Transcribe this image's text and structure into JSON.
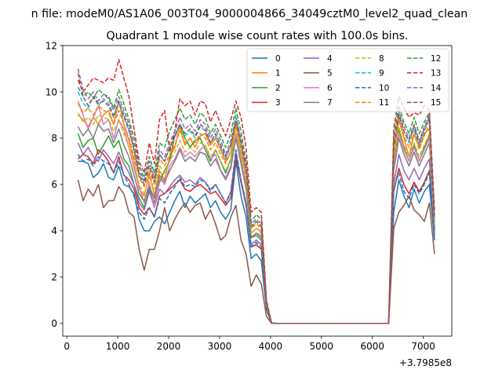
{
  "chart_data": {
    "type": "line",
    "suptitle": "n file: modeM0/AS1A06_003T04_9000004866_34049cztM0_level2_quad_clean",
    "title": "Quadrant 1 module wise count rates with 100.0s bins.",
    "xlabel": "",
    "ylabel": "",
    "x_offset_label": "+3.7985e8",
    "xlim": [
      -80,
      7560
    ],
    "ylim": [
      -0.55,
      12
    ],
    "xticks": [
      0,
      1000,
      2000,
      3000,
      4000,
      5000,
      6000,
      7000
    ],
    "yticks": [
      0,
      2,
      4,
      6,
      8,
      10,
      12
    ],
    "grid": false,
    "legend": {
      "position": "top-right",
      "columns": 4
    },
    "x": [
      220,
      320,
      420,
      520,
      620,
      720,
      820,
      920,
      1020,
      1120,
      1220,
      1320,
      1420,
      1520,
      1620,
      1720,
      1820,
      1920,
      2020,
      2120,
      2220,
      2320,
      2420,
      2520,
      2620,
      2720,
      2820,
      2920,
      3020,
      3120,
      3220,
      3320,
      3420,
      3520,
      3620,
      3720,
      3820,
      3920,
      4020,
      4120,
      4220,
      4320,
      4420,
      4520,
      4620,
      4720,
      4820,
      4920,
      5020,
      5120,
      5220,
      5320,
      5420,
      5520,
      5620,
      5720,
      5820,
      5920,
      6020,
      6120,
      6220,
      6320,
      6420,
      6520,
      6620,
      6720,
      6820,
      6920,
      7020,
      7120,
      7220
    ],
    "series": [
      {
        "name": "0",
        "color": "#1f77b4",
        "dashed": false,
        "values": [
          7.0,
          7.0,
          6.9,
          6.3,
          6.5,
          6.9,
          6.3,
          6.2,
          6.8,
          6.0,
          5.9,
          5.6,
          4.5,
          4.0,
          4.0,
          4.4,
          4.6,
          4.3,
          4.8,
          5.3,
          5.7,
          5.0,
          5.5,
          5.2,
          5.4,
          5.6,
          5.0,
          5.3,
          4.8,
          4.5,
          4.9,
          7.0,
          5.5,
          4.6,
          2.8,
          3.0,
          2.7,
          0.6,
          0.02,
          0,
          0,
          0,
          0,
          0,
          0,
          0,
          0,
          0,
          0,
          0,
          0,
          0,
          0,
          0,
          0,
          0,
          0,
          0,
          0,
          0,
          0,
          0,
          4.8,
          6.2,
          5.5,
          5.0,
          5.8,
          5.2,
          5.7,
          6.0,
          3.6
        ]
      },
      {
        "name": "1",
        "color": "#ff7f0e",
        "dashed": false,
        "values": [
          9.0,
          8.8,
          8.5,
          8.9,
          8.6,
          9.0,
          9.2,
          8.6,
          9.6,
          8.6,
          7.9,
          7.0,
          5.8,
          5.5,
          6.5,
          5.5,
          6.6,
          6.2,
          7.2,
          7.6,
          8.5,
          7.7,
          8.0,
          7.6,
          8.1,
          8.2,
          7.7,
          8.0,
          7.5,
          7.0,
          7.4,
          8.6,
          7.4,
          6.4,
          3.9,
          4.1,
          4.0,
          0.8,
          0.02,
          0,
          0,
          0,
          0,
          0,
          0,
          0,
          0,
          0,
          0,
          0,
          0,
          0,
          0,
          0,
          0,
          0,
          0,
          0,
          0,
          0,
          0,
          0,
          7.0,
          8.8,
          8.0,
          7.2,
          8.2,
          7.6,
          8.2,
          8.4,
          4.3
        ]
      },
      {
        "name": "2",
        "color": "#2ca02c",
        "dashed": false,
        "values": [
          8.2,
          7.6,
          7.9,
          8.0,
          7.3,
          7.7,
          8.1,
          7.6,
          7.9,
          7.1,
          6.8,
          6.0,
          5.4,
          5.0,
          5.8,
          5.2,
          6.1,
          6.6,
          7.0,
          8.1,
          8.6,
          8.0,
          7.6,
          7.9,
          8.0,
          7.5,
          7.0,
          7.5,
          7.0,
          6.5,
          7.1,
          8.2,
          7.0,
          6.0,
          3.7,
          3.8,
          3.6,
          0.7,
          0.02,
          0,
          0,
          0,
          0,
          0,
          0,
          0,
          0,
          0,
          0,
          0,
          0,
          0,
          0,
          0,
          0,
          0,
          0,
          0,
          0,
          0,
          0,
          0,
          6.8,
          8.4,
          7.6,
          7.0,
          7.7,
          7.0,
          7.6,
          8.1,
          4.0
        ]
      },
      {
        "name": "3",
        "color": "#d62728",
        "dashed": false,
        "values": [
          7.1,
          7.3,
          7.2,
          6.9,
          7.5,
          7.3,
          7.0,
          6.5,
          7.2,
          6.4,
          6.2,
          5.8,
          5.0,
          4.7,
          5.0,
          4.6,
          5.5,
          5.6,
          5.8,
          6.0,
          6.2,
          5.8,
          5.7,
          5.9,
          6.0,
          5.8,
          5.6,
          5.7,
          5.4,
          5.1,
          5.4,
          7.2,
          6.1,
          5.1,
          3.3,
          3.4,
          3.2,
          0.6,
          0.02,
          0,
          0,
          0,
          0,
          0,
          0,
          0,
          0,
          0,
          0,
          0,
          0,
          0,
          0,
          0,
          0,
          0,
          0,
          0,
          0,
          0,
          0,
          0,
          5.7,
          6.7,
          6.0,
          5.6,
          6.1,
          5.7,
          6.1,
          6.6,
          3.8
        ]
      },
      {
        "name": "4",
        "color": "#9467bd",
        "dashed": false,
        "values": [
          7.8,
          7.3,
          7.6,
          7.2,
          7.0,
          7.5,
          7.2,
          6.9,
          7.4,
          6.9,
          6.5,
          6.0,
          5.2,
          4.9,
          5.7,
          5.0,
          5.8,
          5.6,
          5.9,
          6.2,
          6.4,
          6.1,
          6.2,
          6.0,
          6.3,
          6.1,
          5.8,
          6.0,
          5.6,
          5.2,
          5.7,
          7.4,
          6.2,
          5.2,
          3.4,
          3.6,
          3.4,
          0.6,
          0.02,
          0,
          0,
          0,
          0,
          0,
          0,
          0,
          0,
          0,
          0,
          0,
          0,
          0,
          0,
          0,
          0,
          0,
          0,
          0,
          0,
          0,
          0,
          0,
          6.0,
          7.3,
          6.6,
          6.2,
          6.7,
          6.2,
          6.7,
          7.1,
          3.7
        ]
      },
      {
        "name": "5",
        "color": "#8c564b",
        "dashed": false,
        "values": [
          6.2,
          5.3,
          5.8,
          5.5,
          6.0,
          5.0,
          5.3,
          5.3,
          5.9,
          5.6,
          4.8,
          4.6,
          3.2,
          2.3,
          3.2,
          3.2,
          4.0,
          5.0,
          4.0,
          4.5,
          4.9,
          5.2,
          4.8,
          5.1,
          5.2,
          4.5,
          4.9,
          4.3,
          3.6,
          3.8,
          4.6,
          5.1,
          3.6,
          3.0,
          1.6,
          2.1,
          1.7,
          0.3,
          0.01,
          0,
          0,
          0,
          0,
          0,
          0,
          0,
          0,
          0,
          0,
          0,
          0,
          0,
          0,
          0,
          0,
          0,
          0,
          0,
          0,
          0,
          0,
          0,
          4.1,
          4.8,
          5.1,
          5.5,
          4.9,
          4.7,
          4.4,
          5.2,
          3.0
        ]
      },
      {
        "name": "6",
        "color": "#e377c2",
        "dashed": false,
        "values": [
          9.6,
          9.0,
          8.4,
          8.9,
          9.4,
          8.6,
          8.8,
          8.0,
          8.8,
          8.4,
          7.6,
          6.7,
          5.9,
          5.2,
          6.1,
          5.0,
          6.3,
          6.0,
          6.8,
          7.1,
          7.6,
          7.2,
          7.4,
          7.2,
          7.5,
          7.7,
          7.1,
          7.3,
          6.6,
          6.3,
          6.8,
          8.2,
          7.1,
          5.9,
          3.7,
          3.9,
          3.8,
          0.7,
          0.02,
          0,
          0,
          0,
          0,
          0,
          0,
          0,
          0,
          0,
          0,
          0,
          0,
          0,
          0,
          0,
          0,
          0,
          0,
          0,
          0,
          0,
          0,
          0,
          6.7,
          8.2,
          7.5,
          7.0,
          7.6,
          7.0,
          7.5,
          8.0,
          4.2
        ]
      },
      {
        "name": "7",
        "color": "#7f7f7f",
        "dashed": false,
        "values": [
          8.5,
          8.1,
          8.4,
          8.0,
          8.6,
          8.3,
          8.4,
          7.8,
          8.4,
          7.7,
          7.2,
          6.4,
          5.6,
          5.3,
          5.9,
          5.4,
          6.4,
          6.1,
          6.6,
          7.0,
          7.5,
          7.0,
          7.2,
          7.0,
          7.4,
          7.3,
          6.8,
          7.1,
          6.6,
          6.2,
          6.7,
          8.0,
          6.9,
          5.8,
          3.7,
          3.9,
          3.7,
          0.7,
          0.02,
          0,
          0,
          0,
          0,
          0,
          0,
          0,
          0,
          0,
          0,
          0,
          0,
          0,
          0,
          0,
          0,
          0,
          0,
          0,
          0,
          0,
          0,
          0,
          6.6,
          8.0,
          7.3,
          6.8,
          7.4,
          6.8,
          7.3,
          7.8,
          4.1
        ]
      },
      {
        "name": "8",
        "color": "#bcbd22",
        "dashed": true,
        "values": [
          9.1,
          8.7,
          8.9,
          8.6,
          9.0,
          8.9,
          8.8,
          8.3,
          8.8,
          8.2,
          7.6,
          6.9,
          6.0,
          5.6,
          6.3,
          5.8,
          6.8,
          6.5,
          7.0,
          7.4,
          7.9,
          7.4,
          7.6,
          7.4,
          7.8,
          7.7,
          7.2,
          7.5,
          7.0,
          6.6,
          7.1,
          8.4,
          7.3,
          6.2,
          3.9,
          4.1,
          3.9,
          0.8,
          0.02,
          0,
          0,
          0,
          0,
          0,
          0,
          0,
          0,
          0,
          0,
          0,
          0,
          0,
          0,
          0,
          0,
          0,
          0,
          0,
          0,
          0,
          0,
          0,
          7.0,
          8.5,
          7.7,
          7.2,
          7.8,
          7.2,
          7.7,
          8.2,
          4.3
        ]
      },
      {
        "name": "9",
        "color": "#17becf",
        "dashed": true,
        "values": [
          10.0,
          9.5,
          9.3,
          9.8,
          9.4,
          9.7,
          9.5,
          9.0,
          9.5,
          8.9,
          8.3,
          7.5,
          6.5,
          6.1,
          6.8,
          6.2,
          7.3,
          7.0,
          7.6,
          8.0,
          8.6,
          8.1,
          8.3,
          8.0,
          8.5,
          8.3,
          7.8,
          8.1,
          7.6,
          7.1,
          7.7,
          9.0,
          7.8,
          6.6,
          4.1,
          4.4,
          4.2,
          0.8,
          0.02,
          0,
          0,
          0,
          0,
          0,
          0,
          0,
          0,
          0,
          0,
          0,
          0,
          0,
          0,
          0,
          0,
          0,
          0,
          0,
          0,
          0,
          0,
          0,
          7.5,
          9.1,
          8.3,
          7.8,
          8.4,
          7.7,
          8.3,
          8.8,
          4.5
        ]
      },
      {
        "name": "10",
        "color": "#1f77b4",
        "dashed": true,
        "values": [
          7.3,
          7.0,
          7.1,
          6.8,
          7.2,
          7.0,
          6.9,
          6.5,
          7.0,
          6.4,
          6.0,
          5.5,
          4.8,
          4.5,
          5.0,
          4.6,
          5.4,
          5.2,
          5.6,
          5.9,
          6.3,
          5.9,
          6.0,
          5.9,
          6.2,
          6.1,
          5.7,
          6.0,
          5.6,
          5.2,
          5.6,
          7.5,
          6.2,
          5.2,
          3.3,
          3.5,
          3.3,
          0.6,
          0.02,
          0,
          0,
          0,
          0,
          0,
          0,
          0,
          0,
          0,
          0,
          0,
          0,
          0,
          0,
          0,
          0,
          0,
          0,
          0,
          0,
          0,
          0,
          0,
          5.8,
          6.5,
          5.7,
          5.4,
          6.0,
          5.6,
          6.0,
          6.5,
          3.6
        ]
      },
      {
        "name": "11",
        "color": "#ff7f0e",
        "dashed": true,
        "values": [
          9.5,
          9.1,
          9.3,
          9.0,
          9.4,
          9.2,
          9.1,
          8.6,
          9.2,
          8.6,
          8.0,
          7.2,
          6.3,
          5.9,
          6.6,
          6.0,
          7.1,
          6.8,
          7.3,
          7.7,
          8.3,
          7.8,
          8.0,
          7.8,
          8.2,
          8.0,
          7.5,
          7.8,
          7.3,
          6.9,
          7.4,
          8.7,
          7.6,
          6.4,
          4.1,
          4.3,
          4.1,
          0.8,
          0.02,
          0,
          0,
          0,
          0,
          0,
          0,
          0,
          0,
          0,
          0,
          0,
          0,
          0,
          0,
          0,
          0,
          0,
          0,
          0,
          0,
          0,
          0,
          0,
          7.3,
          8.9,
          8.1,
          7.6,
          8.2,
          7.5,
          8.1,
          8.6,
          4.4
        ]
      },
      {
        "name": "12",
        "color": "#2ca02c",
        "dashed": true,
        "values": [
          10.2,
          9.8,
          10.0,
          9.7,
          10.1,
          9.9,
          9.8,
          9.3,
          10.1,
          9.5,
          8.8,
          8.0,
          6.8,
          6.3,
          7.2,
          6.5,
          7.8,
          7.6,
          8.3,
          8.8,
          9.3,
          8.8,
          9.0,
          8.6,
          9.1,
          8.9,
          8.2,
          8.6,
          8.1,
          7.6,
          8.2,
          9.3,
          8.3,
          7.0,
          4.4,
          4.7,
          4.5,
          0.9,
          0.02,
          0,
          0,
          0,
          0,
          0,
          0,
          0,
          0,
          0,
          0,
          0,
          0,
          0,
          0,
          0,
          0,
          0,
          0,
          0,
          0,
          0,
          0,
          0,
          8.1,
          9.4,
          8.7,
          8.2,
          8.9,
          8.2,
          8.7,
          9.1,
          4.7
        ]
      },
      {
        "name": "13",
        "color": "#d62728",
        "dashed": true,
        "values": [
          10.5,
          10.0,
          10.3,
          10.6,
          10.5,
          10.4,
          10.6,
          10.5,
          11.4,
          10.6,
          9.8,
          8.4,
          7.0,
          6.5,
          7.8,
          6.9,
          8.8,
          9.2,
          7.4,
          8.3,
          9.7,
          9.4,
          9.6,
          9.0,
          9.6,
          9.5,
          8.7,
          9.2,
          8.6,
          8.1,
          8.8,
          9.6,
          8.9,
          7.6,
          4.8,
          5.0,
          4.8,
          1.0,
          0.02,
          0,
          0,
          0,
          0,
          0,
          0,
          0,
          0,
          0,
          0,
          0,
          0,
          0,
          0,
          0,
          0,
          0,
          0,
          0,
          0,
          0,
          0,
          0,
          8.4,
          9.8,
          9.3,
          8.9,
          9.1,
          9.0,
          9.4,
          9.2,
          4.9
        ]
      },
      {
        "name": "14",
        "color": "#9467bd",
        "dashed": true,
        "values": [
          11.0,
          10.1,
          9.7,
          10.0,
          9.6,
          9.9,
          9.7,
          9.2,
          9.8,
          9.2,
          8.6,
          7.7,
          6.6,
          6.2,
          7.0,
          6.3,
          7.5,
          7.2,
          7.8,
          8.3,
          8.9,
          8.4,
          8.6,
          8.3,
          8.8,
          8.6,
          8.0,
          8.4,
          7.9,
          7.3,
          7.9,
          8.9,
          8.0,
          6.8,
          4.3,
          4.5,
          4.3,
          0.9,
          0.02,
          0,
          0,
          0,
          0,
          0,
          0,
          0,
          0,
          0,
          0,
          0,
          0,
          0,
          0,
          0,
          0,
          0,
          0,
          0,
          0,
          0,
          0,
          0,
          7.7,
          9.2,
          8.5,
          8.0,
          8.6,
          7.9,
          8.5,
          9.0,
          4.6
        ]
      },
      {
        "name": "15",
        "color": "#8c564b",
        "dashed": true,
        "values": [
          10.8,
          9.8,
          9.4,
          9.8,
          9.5,
          9.6,
          9.4,
          8.9,
          9.6,
          9.0,
          8.4,
          7.5,
          6.4,
          6.0,
          6.8,
          6.1,
          7.3,
          7.0,
          7.6,
          8.1,
          8.6,
          8.2,
          8.4,
          8.1,
          8.6,
          8.4,
          7.8,
          8.2,
          7.7,
          7.2,
          7.7,
          8.7,
          7.8,
          6.7,
          4.2,
          4.4,
          4.2,
          0.9,
          0.02,
          0,
          0,
          0,
          0,
          0,
          0,
          0,
          0,
          0,
          0,
          0,
          0,
          0,
          0,
          0,
          0,
          0,
          0,
          0,
          0,
          0,
          0,
          0,
          7.6,
          9.0,
          8.3,
          7.9,
          8.5,
          7.8,
          8.4,
          8.9,
          4.5
        ]
      }
    ]
  }
}
